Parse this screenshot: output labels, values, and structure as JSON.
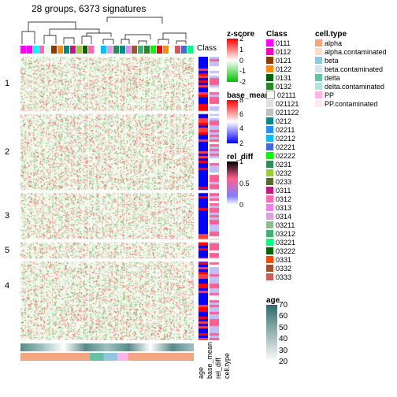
{
  "title": "28 groups,  6373 signatures",
  "row_groups": [
    "1",
    "2",
    "3",
    "5",
    "4"
  ],
  "row_group_heights": [
    0.2,
    0.28,
    0.17,
    0.06,
    0.18
  ],
  "class_strip_colors": [
    "#ff00ff",
    "#ff00ff",
    "#00ffff",
    "#ff69b4",
    "#e0ffe0",
    "#8b3a00",
    "#ff8c00",
    "#008b8b",
    "#c71585",
    "#9acd32",
    "#006400",
    "#ff69b4",
    "#ffffff",
    "#00bfff",
    "#dda0dd",
    "#2e8b57",
    "#008b8b",
    "#ee82ee",
    "#a0522d",
    "#3cb371",
    "#228b22",
    "#00ff00",
    "#ff0000",
    "#ff8c00",
    "#ffffff",
    "#cd5c5c",
    "#4169e1",
    "#00ff7f"
  ],
  "side_label": "Class",
  "zscore": {
    "title": "z-score",
    "ticks": [
      {
        "v": "2",
        "p": 0
      },
      {
        "v": "1",
        "p": 0.25
      },
      {
        "v": "0",
        "p": 0.5
      },
      {
        "v": "-1",
        "p": 0.75
      },
      {
        "v": "-2",
        "p": 1
      }
    ],
    "gradient": "linear-gradient(to bottom, #ff0000 0%, #ffffff 50%, #00c000 100%)"
  },
  "base_mean": {
    "title": "base_mean",
    "ticks": [
      {
        "v": "8",
        "p": 0
      },
      {
        "v": "6",
        "p": 0.33
      },
      {
        "v": "4",
        "p": 0.66
      },
      {
        "v": "2",
        "p": 1
      }
    ],
    "gradient": "linear-gradient(to bottom, #ff0000 0%, #ffffff 50%, #0000ff 100%)"
  },
  "rel_diff": {
    "title": "rel_diff",
    "ticks": [
      {
        "v": "1",
        "p": 0
      },
      {
        "v": "0.5",
        "p": 0.5
      },
      {
        "v": "0",
        "p": 1
      }
    ],
    "gradient": "linear-gradient(to bottom, #000000 0%, #ff6090 40%, #8080ff 80%, #ffffff 100%)"
  },
  "age": {
    "title": "age",
    "ticks": [
      {
        "v": "70",
        "p": 0
      },
      {
        "v": "60",
        "p": 0.2
      },
      {
        "v": "50",
        "p": 0.4
      },
      {
        "v": "40",
        "p": 0.6
      },
      {
        "v": "30",
        "p": 0.8
      },
      {
        "v": "20",
        "p": 1
      }
    ],
    "gradient": "linear-gradient(to bottom, #2f6b6b 0%, #ffffff 100%)"
  },
  "class_legend": {
    "title": "Class",
    "items": [
      {
        "c": "#ff00ff",
        "l": "0111"
      },
      {
        "c": "#ff00bf",
        "l": "0112"
      },
      {
        "c": "#8b3a00",
        "l": "0121"
      },
      {
        "c": "#ff8c00",
        "l": "0122"
      },
      {
        "c": "#006400",
        "l": "0131"
      },
      {
        "c": "#228b22",
        "l": "0132"
      },
      {
        "c": "#ffffff",
        "l": "02111"
      },
      {
        "c": "#e0e0e0",
        "l": "021121"
      },
      {
        "c": "#c0c0c0",
        "l": "021122"
      },
      {
        "c": "#008b8b",
        "l": "0212"
      },
      {
        "c": "#1e90ff",
        "l": "02211"
      },
      {
        "c": "#00bfff",
        "l": "02212"
      },
      {
        "c": "#4169e1",
        "l": "02221"
      },
      {
        "c": "#00ff00",
        "l": "02222"
      },
      {
        "c": "#2e8b57",
        "l": "0231"
      },
      {
        "c": "#9acd32",
        "l": "0232"
      },
      {
        "c": "#556b2f",
        "l": "0233"
      },
      {
        "c": "#c71585",
        "l": "0311"
      },
      {
        "c": "#ff69b4",
        "l": "0312"
      },
      {
        "c": "#ee82ee",
        "l": "0313"
      },
      {
        "c": "#dda0dd",
        "l": "0314"
      },
      {
        "c": "#8fbc8f",
        "l": "03211"
      },
      {
        "c": "#3cb371",
        "l": "03212"
      },
      {
        "c": "#00ff7f",
        "l": "03221"
      },
      {
        "c": "#006400",
        "l": "03222"
      },
      {
        "c": "#ff4500",
        "l": "0331"
      },
      {
        "c": "#a0522d",
        "l": "0332"
      },
      {
        "c": "#cd5c5c",
        "l": "0333"
      }
    ]
  },
  "celltype_legend": {
    "title": "cell.type",
    "items": [
      {
        "c": "#f4a582",
        "l": "alpha"
      },
      {
        "c": "#fddbc7",
        "l": "alpha.contaminated"
      },
      {
        "c": "#92c5de",
        "l": "beta"
      },
      {
        "c": "#d1e5f0",
        "l": "beta.contaminated"
      },
      {
        "c": "#66c2a5",
        "l": "delta"
      },
      {
        "c": "#b2e2e2",
        "l": "delta.contaminated"
      },
      {
        "c": "#ffb3e6",
        "l": "PP"
      },
      {
        "c": "#ffe6f2",
        "l": "PP.contaminated"
      }
    ]
  },
  "bottom_labels": [
    "age",
    "base_mean",
    "rel_diff",
    "cell.type"
  ],
  "heatmap_bg": "#f0fff0",
  "heatmap_seed_colors": [
    "#ff4040",
    "#ffffff",
    "#60c060",
    "#e0ffe0",
    "#ffe0e0"
  ],
  "side_annot_colors": {
    "base_mean_stripes": [
      "#0000ff",
      "#ff0000",
      "#0000ff",
      "#ff4040",
      "#0000ff"
    ],
    "rel_diff_stripes": [
      "#ff6090",
      "#c0c0ff",
      "#ffffff",
      "#ff6090",
      "#c0c0ff"
    ]
  },
  "bottom_annot": {
    "age_gradient": "linear-gradient(90deg,#5a8a8a,#a0c0c0,#ffffff,#5a8a8a,#a0c0c0,#5a8a8a,#ffffff,#5a8a8a,#a0c0c0)",
    "celltype_gradient": "linear-gradient(90deg,#f4a582 0 40%,#66c2a5 40% 48%,#92c5de 48% 56%,#ffb3e6 56% 62%,#f4a582 62% 100%)"
  }
}
